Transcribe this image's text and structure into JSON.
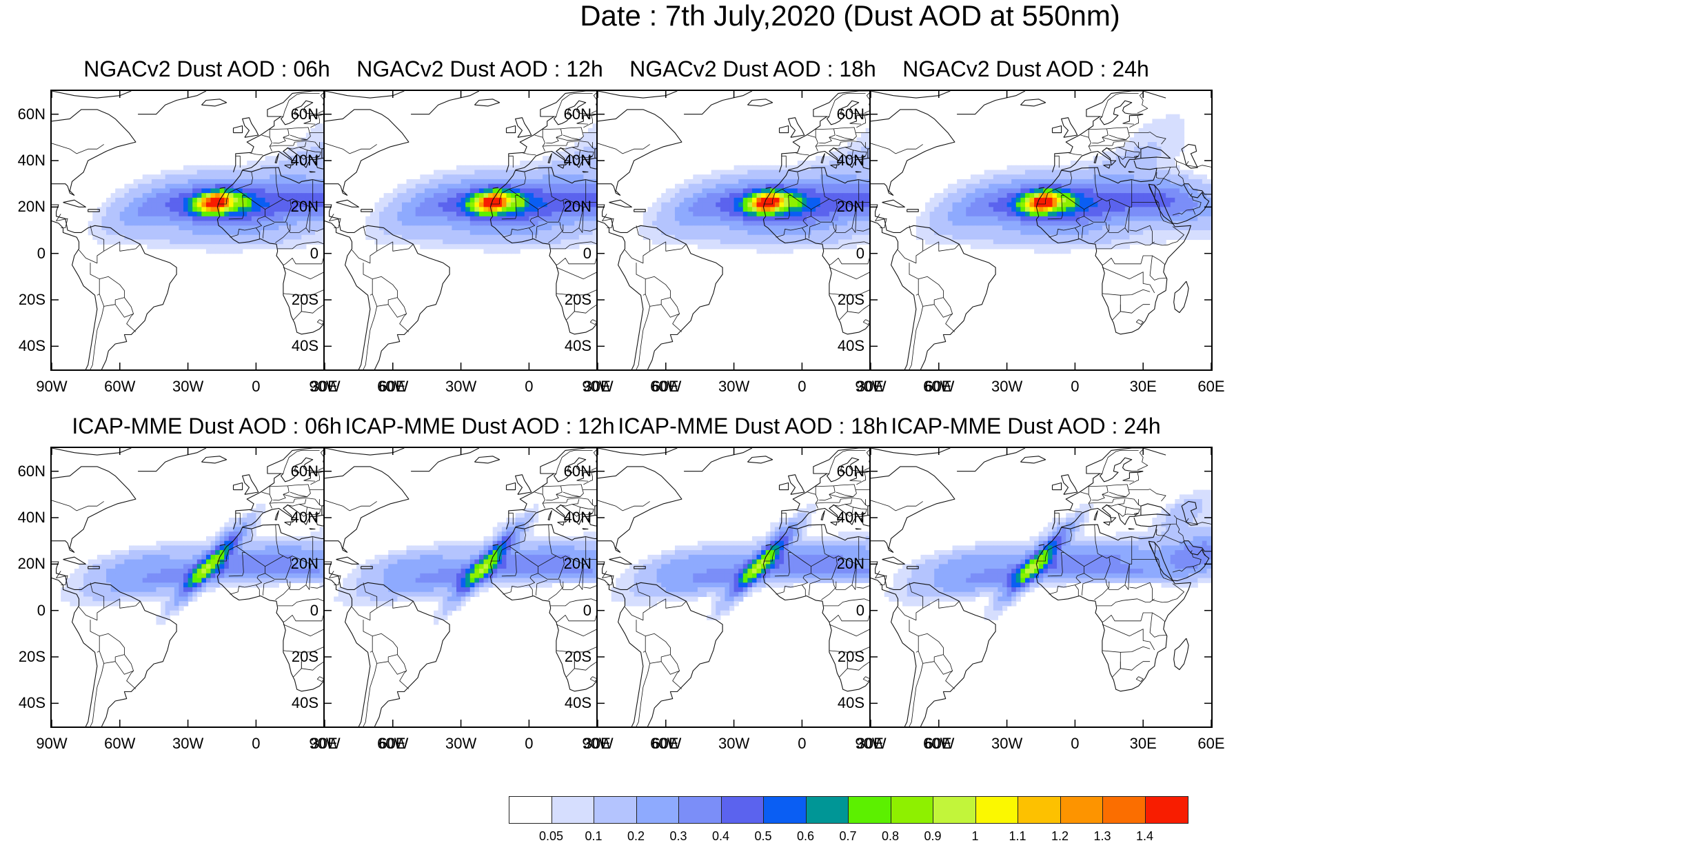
{
  "title": "Date : 7th July,2020 (Dust AOD at 550nm)",
  "map": {
    "lon_range": [
      -90,
      60
    ],
    "lat_range": [
      -50,
      70
    ],
    "lat_ticks": [
      {
        "lat": 60,
        "label": "60N"
      },
      {
        "lat": 40,
        "label": "40N"
      },
      {
        "lat": 20,
        "label": "20N"
      },
      {
        "lat": 0,
        "label": "0"
      },
      {
        "lat": -20,
        "label": "20S"
      },
      {
        "lat": -40,
        "label": "40S"
      }
    ],
    "lon_ticks": [
      {
        "lon": -90,
        "label": "90W"
      },
      {
        "lon": -60,
        "label": "60W"
      },
      {
        "lon": -30,
        "label": "30W"
      },
      {
        "lon": 0,
        "label": "0"
      },
      {
        "lon": 30,
        "label": "30E"
      },
      {
        "lon": 60,
        "label": "60E"
      }
    ]
  },
  "panels": [
    {
      "title": "NGACv2 Dust AOD : 06h",
      "model": "NGACv2"
    },
    {
      "title": "NGACv2 Dust AOD : 12h",
      "model": "NGACv2"
    },
    {
      "title": "NGACv2 Dust AOD : 18h",
      "model": "NGACv2"
    },
    {
      "title": "NGACv2 Dust AOD : 24h",
      "model": "NGACv2"
    },
    {
      "title": "ICAP-MME Dust AOD : 06h",
      "model": "ICAP-MME"
    },
    {
      "title": "ICAP-MME Dust AOD : 12h",
      "model": "ICAP-MME"
    },
    {
      "title": "ICAP-MME Dust AOD : 18h",
      "model": "ICAP-MME"
    },
    {
      "title": "ICAP-MME Dust AOD : 24h",
      "model": "ICAP-MME"
    }
  ],
  "colorbar": {
    "colors": [
      "#ffffff",
      "#d6defe",
      "#b4c4fe",
      "#8eaafe",
      "#7b8ef8",
      "#5b63ee",
      "#0a5ef3",
      "#009696",
      "#5cf000",
      "#8ef000",
      "#c2f53a",
      "#fbf800",
      "#fdc100",
      "#fd9400",
      "#fb6e00",
      "#f81d00"
    ],
    "labels": [
      "0.05",
      "0.1",
      "0.2",
      "0.3",
      "0.4",
      "0.5",
      "0.6",
      "0.7",
      "0.8",
      "0.9",
      "1",
      "1.1",
      "1.2",
      "1.3",
      "1.4"
    ]
  }
}
